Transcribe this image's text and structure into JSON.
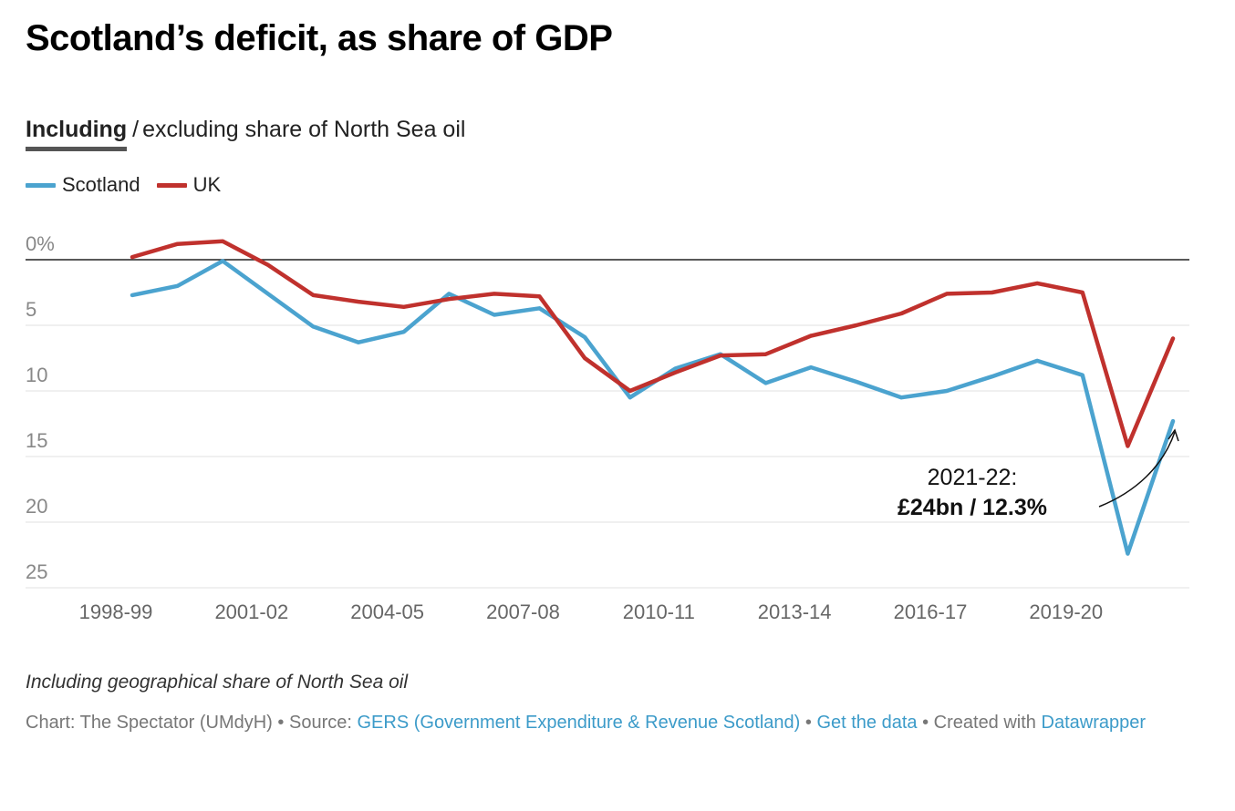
{
  "title": "Scotland’s deficit, as share of GDP",
  "toggle": {
    "active": "Including",
    "separator": "/",
    "inactive": "excluding share of North Sea oil"
  },
  "colors": {
    "scotland": "#4ba3cf",
    "uk": "#c0312d",
    "grid": "#e1e1e1",
    "zero_line": "#222222",
    "tick_text": "#888888",
    "link": "#3c9bc9"
  },
  "chart_data": {
    "type": "line",
    "x": [
      "1998-99",
      "1999-00",
      "2000-01",
      "2001-02",
      "2002-03",
      "2003-04",
      "2004-05",
      "2005-06",
      "2006-07",
      "2007-08",
      "2008-09",
      "2009-10",
      "2010-11",
      "2011-12",
      "2012-13",
      "2013-14",
      "2014-15",
      "2015-16",
      "2016-17",
      "2017-18",
      "2018-19",
      "2019-20",
      "2020-21",
      "2021-22"
    ],
    "xticks": [
      "1998-99",
      "2001-02",
      "2004-05",
      "2007-08",
      "2010-11",
      "2013-14",
      "2016-17",
      "2019-20"
    ],
    "yticks": [
      0,
      5,
      10,
      15,
      20,
      25
    ],
    "ytick_labels": [
      "0%",
      "5",
      "10",
      "15",
      "20",
      "25"
    ],
    "ylim": [
      0,
      25
    ],
    "y_axis_inverted": true,
    "grid": true,
    "legend_position": "top-left",
    "series": [
      {
        "name": "Scotland",
        "color": "#4ba3cf",
        "values": [
          2.7,
          2.0,
          0.1,
          2.6,
          5.1,
          6.3,
          5.5,
          2.6,
          4.2,
          3.7,
          5.9,
          10.5,
          8.3,
          7.2,
          9.4,
          8.2,
          9.3,
          10.5,
          10.0,
          8.9,
          7.7,
          8.8,
          22.4,
          12.3
        ]
      },
      {
        "name": "UK",
        "color": "#c0312d",
        "values": [
          -0.2,
          -1.2,
          -1.4,
          0.4,
          2.7,
          3.2,
          3.6,
          3.0,
          2.6,
          2.8,
          7.5,
          10.0,
          8.6,
          7.3,
          7.2,
          5.8,
          5.0,
          4.1,
          2.6,
          2.5,
          1.8,
          2.5,
          14.2,
          6.0
        ]
      }
    ],
    "annotation": {
      "line1": "2021-22:",
      "line2": "£24bn / 12.3%"
    }
  },
  "note": "Including geographical share of North Sea oil",
  "footer": {
    "chart_credit": "Chart: The Spectator (UMdyH)",
    "dot": "•",
    "source_label": "Source:",
    "source_link": "GERS (Government Expenditure & Revenue Scotland)",
    "data_link": "Get the data",
    "created_with": "Created with",
    "tool_link": "Datawrapper"
  }
}
